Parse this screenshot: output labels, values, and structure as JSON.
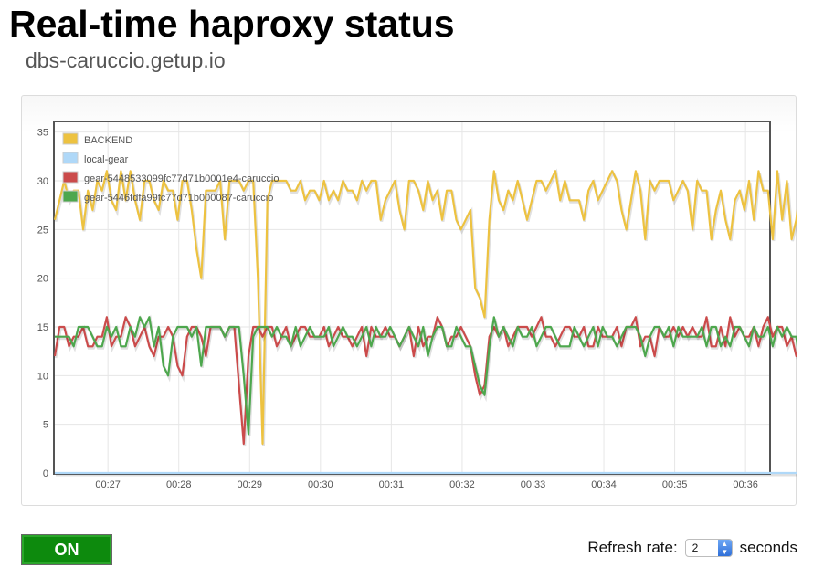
{
  "header": {
    "title": "Real-time haproxy status",
    "subtitle": "dbs-caruccio.getup.io"
  },
  "controls": {
    "toggle_label": "ON",
    "toggle_color": "#0d8a0d",
    "refresh_label": "Refresh rate:",
    "refresh_value": "2",
    "refresh_unit": "seconds",
    "select_icon": "stepper-arrows-icon"
  },
  "chart_data": {
    "type": "line",
    "title": "",
    "xlabel": "",
    "ylabel": "",
    "ylim": [
      0,
      36
    ],
    "xlim": [
      "00:26:15",
      "00:36:20"
    ],
    "yticks": [
      0,
      5,
      10,
      15,
      20,
      25,
      30,
      35
    ],
    "xticks": [
      "00:27",
      "00:28",
      "00:29",
      "00:30",
      "00:31",
      "00:32",
      "00:33",
      "00:34",
      "00:35",
      "00:36"
    ],
    "grid": true,
    "legend_position": "top-left",
    "x_start": "00:26:15",
    "x_interval_seconds": 4,
    "series": [
      {
        "name": "BACKEND",
        "color": "#edc240",
        "values": [
          26,
          28,
          30,
          28,
          29,
          29,
          25,
          29,
          27,
          30,
          29,
          31,
          28,
          27,
          31,
          28,
          31,
          28,
          26,
          30,
          30,
          28,
          27,
          30,
          29,
          29,
          26,
          30,
          30,
          27,
          23,
          20,
          29,
          29,
          29,
          30,
          24,
          30,
          30,
          30,
          29,
          30,
          30,
          20,
          3,
          28,
          30,
          30,
          30,
          30,
          29,
          29,
          30,
          28,
          29,
          29,
          28,
          30,
          28,
          29,
          28,
          30,
          29,
          29,
          28,
          30,
          29,
          30,
          30,
          26,
          28,
          29,
          30,
          27,
          25,
          30,
          30,
          29,
          27,
          30,
          28,
          29,
          26,
          29,
          29,
          26,
          25,
          26,
          27,
          19,
          18,
          16,
          26,
          31,
          28,
          27,
          29,
          28,
          30,
          28,
          26,
          28,
          30,
          30,
          29,
          30,
          31,
          28,
          30,
          28,
          28,
          28,
          26,
          29,
          30,
          28,
          29,
          30,
          31,
          30,
          27,
          25,
          28,
          31,
          29,
          24,
          30,
          29,
          30,
          30,
          30,
          28,
          29,
          30,
          29,
          25,
          30,
          29,
          29,
          24,
          27,
          29,
          26,
          24,
          28,
          29,
          27,
          30,
          26,
          31,
          29,
          29,
          24,
          31,
          26,
          30,
          24,
          26,
          30,
          29,
          31,
          28,
          26,
          31,
          29,
          28,
          31,
          31,
          26,
          28,
          27,
          31,
          28,
          25,
          31,
          28,
          31,
          30,
          26,
          29,
          31,
          28,
          29,
          24,
          30,
          31,
          28,
          29,
          24,
          23
        ],
        "area_hint": "none"
      },
      {
        "name": "local-gear",
        "color": "#afd8f8",
        "values": [
          0,
          0,
          0,
          0,
          0,
          0,
          0,
          0,
          0,
          0,
          0,
          0,
          0,
          0,
          0,
          0,
          0,
          0,
          0,
          0,
          0,
          0,
          0,
          0,
          0,
          0,
          0,
          0,
          0,
          0,
          0,
          0,
          0,
          0,
          0,
          0,
          0,
          0,
          0,
          0,
          0,
          0,
          0,
          0,
          0,
          0,
          0,
          0,
          0,
          0,
          0,
          0,
          0,
          0,
          0,
          0,
          0,
          0,
          0,
          0,
          0,
          0,
          0,
          0,
          0,
          0,
          0,
          0,
          0,
          0,
          0,
          0,
          0,
          0,
          0,
          0,
          0,
          0,
          0,
          0,
          0,
          0,
          0,
          0,
          0,
          0,
          0,
          0,
          0,
          0,
          0,
          0,
          0,
          0,
          0,
          0,
          0,
          0,
          0,
          0,
          0,
          0,
          0,
          0,
          0,
          0,
          0,
          0,
          0,
          0,
          0,
          0,
          0,
          0,
          0,
          0,
          0,
          0,
          0,
          0,
          0,
          0,
          0,
          0,
          0,
          0,
          0,
          0,
          0,
          0,
          0,
          0,
          0,
          0,
          0,
          0,
          0,
          0,
          0,
          0,
          0,
          0,
          0,
          0,
          0,
          0,
          0,
          0,
          0,
          0,
          0,
          0,
          0,
          0,
          0,
          0,
          0,
          0,
          0,
          0,
          0,
          0,
          0,
          0,
          0,
          0,
          0,
          0,
          0,
          0,
          0,
          0,
          0,
          0,
          0,
          0,
          0,
          0,
          0,
          0,
          0,
          0,
          0,
          0,
          0,
          0,
          0,
          0,
          0,
          0
        ]
      },
      {
        "name": "gear-5448533099fc77d71b0001e4-caruccio",
        "color": "#cb4b4b",
        "values": [
          12,
          15,
          15,
          13,
          14,
          14,
          15,
          13,
          13,
          14,
          14,
          16,
          13,
          14,
          14,
          16,
          15,
          13,
          14,
          15,
          13,
          12,
          14,
          14,
          15,
          14,
          11,
          10,
          14,
          15,
          15,
          14,
          12,
          15,
          15,
          15,
          14,
          15,
          15,
          9,
          3,
          12,
          15,
          15,
          14,
          15,
          15,
          13,
          14,
          15,
          13,
          14,
          15,
          15,
          14,
          14,
          14,
          15,
          13,
          14,
          15,
          14,
          14,
          13,
          14,
          15,
          12,
          15,
          14,
          14,
          15,
          14,
          14,
          13,
          14,
          15,
          12,
          15,
          13,
          14,
          14,
          16,
          15,
          13,
          14,
          14,
          15,
          14,
          13,
          10,
          8,
          9,
          14,
          15,
          14,
          15,
          13,
          14,
          15,
          15,
          15,
          14,
          15,
          16,
          14,
          14,
          13,
          14,
          15,
          15,
          14,
          14,
          15,
          13,
          13,
          15,
          14,
          14,
          14,
          15,
          13,
          15,
          15,
          16,
          13,
          14,
          14,
          12,
          15,
          14,
          14,
          15,
          14,
          15,
          14,
          15,
          14,
          14,
          16,
          13,
          13,
          15,
          13,
          16,
          14,
          15,
          14,
          14,
          15,
          13,
          15,
          16,
          14,
          15,
          15,
          13,
          14,
          12,
          12,
          14,
          11,
          14,
          15,
          13,
          15,
          13,
          14,
          16,
          15,
          14,
          16,
          13,
          14,
          15,
          13,
          14,
          16,
          14,
          15,
          12,
          12,
          15,
          15,
          12,
          12,
          12
        ]
      },
      {
        "name": "gear-5446fdfa99fc77d71b000087-caruccio",
        "color": "#4da74d",
        "values": [
          14,
          14,
          14,
          14,
          13,
          15,
          15,
          15,
          14,
          13,
          13,
          15,
          14,
          15,
          13,
          13,
          15,
          14,
          16,
          15,
          16,
          13,
          15,
          11,
          10,
          14,
          15,
          15,
          15,
          14,
          15,
          11,
          15,
          15,
          15,
          15,
          14,
          15,
          15,
          15,
          10,
          4,
          14,
          15,
          15,
          15,
          14,
          15,
          14,
          14,
          13,
          15,
          13,
          14,
          15,
          14,
          14,
          14,
          15,
          13,
          14,
          15,
          14,
          14,
          13,
          14,
          15,
          13,
          15,
          14,
          14,
          15,
          14,
          13,
          14,
          15,
          14,
          13,
          15,
          12,
          14,
          15,
          15,
          13,
          13,
          15,
          14,
          13,
          13,
          11,
          9,
          8,
          13,
          16,
          14,
          15,
          14,
          13,
          15,
          14,
          14,
          15,
          13,
          14,
          15,
          15,
          14,
          13,
          13,
          13,
          15,
          14,
          13,
          14,
          15,
          13,
          15,
          14,
          14,
          13,
          14,
          15,
          15,
          15,
          14,
          12,
          14,
          15,
          15,
          14,
          15,
          13,
          15,
          14,
          14,
          14,
          14,
          15,
          13,
          15,
          15,
          13,
          14,
          13,
          15,
          15,
          14,
          13,
          15,
          14,
          14,
          15,
          13,
          15,
          14,
          15,
          14,
          14,
          10,
          13,
          12,
          14,
          15,
          13,
          15,
          13,
          14,
          15,
          14,
          15,
          15,
          13,
          14,
          15,
          15,
          13,
          14,
          15,
          12,
          13,
          12,
          15,
          14,
          12,
          13,
          11
        ]
      }
    ]
  }
}
